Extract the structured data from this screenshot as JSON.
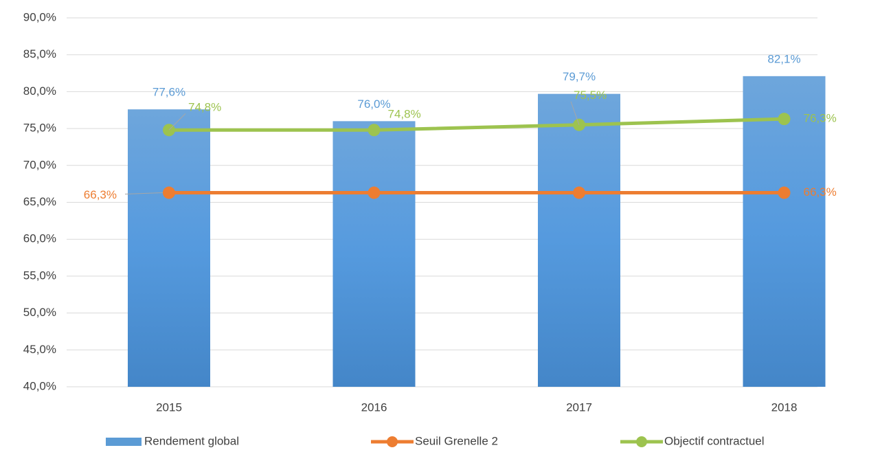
{
  "chart_data": {
    "type": "bar_line",
    "categories": [
      "2015",
      "2016",
      "2017",
      "2018"
    ],
    "series": [
      {
        "name": "Rendement global",
        "type": "bar",
        "color": "#5b9bd5",
        "values": [
          77.6,
          76.0,
          79.7,
          82.1
        ],
        "value_labels": [
          "77,6%",
          "76,0%",
          "79,7%",
          "82,1%"
        ]
      },
      {
        "name": "Seuil Grenelle 2",
        "type": "line",
        "color": "#ed7d31",
        "values": [
          66.3,
          66.3,
          66.3,
          66.3
        ],
        "value_labels": [
          "66,3%",
          null,
          null,
          "66,3%"
        ]
      },
      {
        "name": "Objectif contractuel",
        "type": "line",
        "color": "#9dc34f",
        "values": [
          74.8,
          74.8,
          75.5,
          76.3
        ],
        "value_labels": [
          "74,8%",
          "74,8%",
          "75,5%",
          "76,3%"
        ]
      }
    ],
    "ylim": [
      40,
      90
    ],
    "yticks": [
      {
        "value": 40,
        "label": "40,0%"
      },
      {
        "value": 45,
        "label": "45,0%"
      },
      {
        "value": 50,
        "label": "50,0%"
      },
      {
        "value": 55,
        "label": "55,0%"
      },
      {
        "value": 60,
        "label": "60,0%"
      },
      {
        "value": 65,
        "label": "65,0%"
      },
      {
        "value": 70,
        "label": "70,0%"
      },
      {
        "value": 75,
        "label": "75,0%"
      },
      {
        "value": 80,
        "label": "80,0%"
      },
      {
        "value": 85,
        "label": "85,0%"
      },
      {
        "value": 90,
        "label": "90,0%"
      }
    ],
    "grid": true,
    "legend": "bottom"
  }
}
